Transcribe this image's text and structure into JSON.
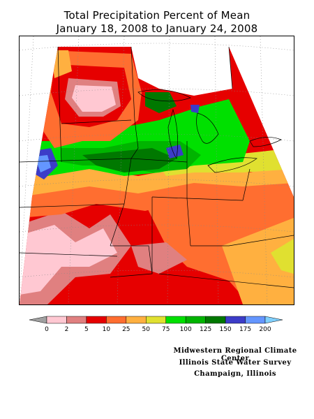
{
  "title": {
    "line1": "Total Precipitation Percent of Mean",
    "line2": "January 18, 2008 to January 24, 2008"
  },
  "legend": {
    "under_color": "#a0a0a0",
    "over_color": "#80d0ff",
    "bins": [
      {
        "color": "#ffc8d2"
      },
      {
        "color": "#e08080"
      },
      {
        "color": "#e60000"
      },
      {
        "color": "#ff6e30"
      },
      {
        "color": "#ffb040"
      },
      {
        "color": "#e0e030"
      },
      {
        "color": "#00e000"
      },
      {
        "color": "#00b400"
      },
      {
        "color": "#007800"
      },
      {
        "color": "#3c3cc8"
      },
      {
        "color": "#6496ff"
      }
    ],
    "tick_labels": [
      "0",
      "2",
      "5",
      "10",
      "25",
      "50",
      "75",
      "100",
      "125",
      "150",
      "175",
      "200"
    ]
  },
  "credits": {
    "line1": "Midwestern Regional Climate Center",
    "line2": "Illinois State Water Survey",
    "line3": "Champaign, Illinois"
  }
}
